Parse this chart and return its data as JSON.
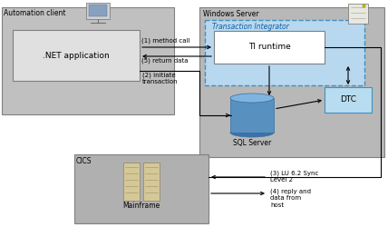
{
  "bg": "#ffffff",
  "auto_client_label": "Automation client",
  "net_app_label": ".NET application",
  "win_server_label": "Windows Server",
  "ti_label": "Transaction Integrator",
  "ti_runtime_label": "TI runtime",
  "dtc_label": "DTC",
  "sql_label": "SQL Server",
  "cics_label": "CICS",
  "mainframe_label": "Mainframe",
  "step1": "(1) method call",
  "step2": "(2) initiate\ntransaction",
  "step3": "(3) LU 6.2 Sync\nLevel 2",
  "step4": "(4) reply and\ndata from\nhost",
  "step5": "(5) return data",
  "c_gray_outer": "#c0c0c0",
  "c_gray_inner": "#e0e0e0",
  "c_win_bg": "#b8b8b8",
  "c_ti_bg": "#b8d8f0",
  "c_ti_edge": "#4090c0",
  "c_white": "#ffffff",
  "c_dtc_bg": "#b8ddf0",
  "c_dtc_edge": "#4090c0",
  "c_edge": "#808080",
  "c_cics_bg": "#b0b0b0",
  "c_cyl_body": "#5890c0",
  "c_cyl_top": "#80b4e0",
  "c_black": "#000000"
}
